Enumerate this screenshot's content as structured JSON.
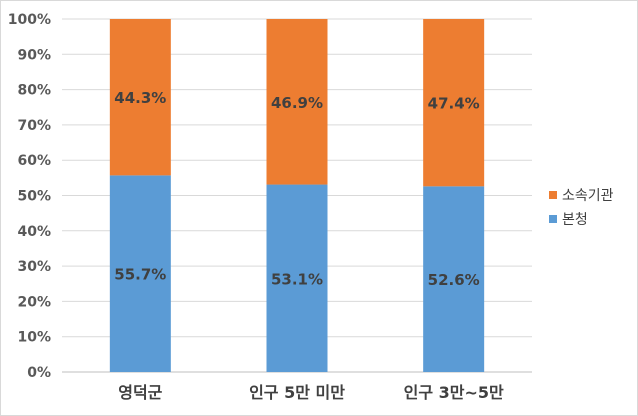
{
  "chart_data": {
    "type": "bar",
    "stacked": true,
    "categories": [
      "영덕군",
      "인구 5만 미만",
      "인구 3만~5만"
    ],
    "series": [
      {
        "name": "본청",
        "values": [
          55.7,
          53.1,
          52.6
        ],
        "labels": [
          "55.7%",
          "53.1%",
          "52.6%"
        ],
        "color": "#5b9bd5"
      },
      {
        "name": "소속기관",
        "values": [
          44.3,
          46.9,
          47.4
        ],
        "labels": [
          "44.3%",
          "46.9%",
          "47.4%"
        ],
        "color": "#ed7d31"
      }
    ],
    "ylim": [
      0,
      100
    ],
    "yticks": [
      "0%",
      "10%",
      "20%",
      "30%",
      "40%",
      "50%",
      "60%",
      "70%",
      "80%",
      "90%",
      "100%"
    ],
    "grid": true,
    "legend_position": "right",
    "legend_order": [
      "소속기관",
      "본청"
    ]
  }
}
